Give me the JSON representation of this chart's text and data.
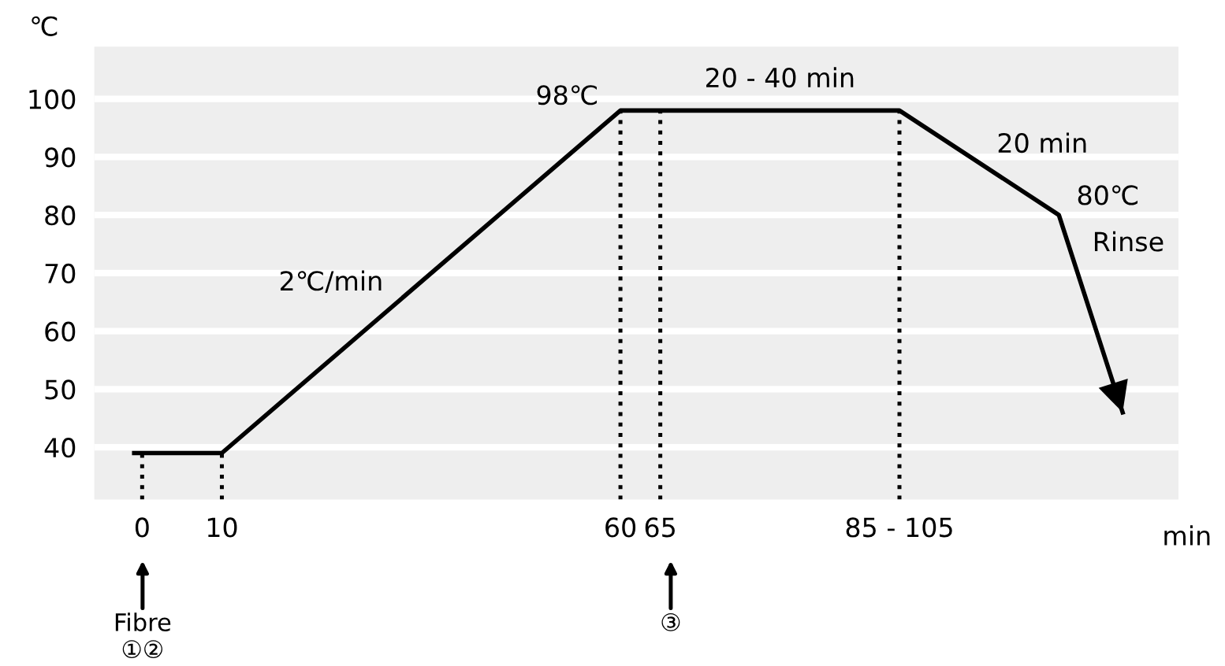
{
  "chart_data": {
    "type": "line",
    "xlabel": "min",
    "ylabel": "℃",
    "x": [
      -1,
      10,
      60,
      65,
      95,
      115,
      123
    ],
    "series": [
      {
        "color": "#000000",
        "values": [
          39,
          39,
          98,
          98,
          98,
          80,
          46
        ]
      }
    ],
    "xlim": [
      -6,
      130
    ],
    "ylim": [
      31,
      109
    ],
    "xticks": [
      0,
      10,
      60,
      65,
      {
        "value": 95,
        "label": "85 - 105"
      }
    ],
    "yticks": [
      40,
      50,
      60,
      70,
      80,
      90,
      100
    ],
    "grid": "y",
    "marker": "none",
    "line_style": "solid",
    "ref_lines": [
      {
        "axis": "x",
        "value": 0,
        "line_style": "dotted"
      },
      {
        "axis": "x",
        "value": 10,
        "line_style": "dotted"
      },
      {
        "axis": "x",
        "value": 60,
        "line_style": "dotted"
      },
      {
        "axis": "x",
        "value": 65,
        "line_style": "dotted"
      },
      {
        "axis": "x",
        "value": 95,
        "line_style": "dotted"
      }
    ],
    "annotations": [
      {
        "text": "98℃",
        "x": 60,
        "y": 98
      },
      {
        "text": "20 - 40 min",
        "x": 80,
        "y": 98
      },
      {
        "text": "2℃/min",
        "x": 33,
        "y": 66
      },
      {
        "text": "20 min",
        "x": 105,
        "y": 89
      },
      {
        "text": "80℃",
        "x": 115,
        "y": 80
      },
      {
        "text": "Rinse",
        "x": 117,
        "y": 72
      },
      "Fibre\n①②",
      "③"
    ]
  }
}
